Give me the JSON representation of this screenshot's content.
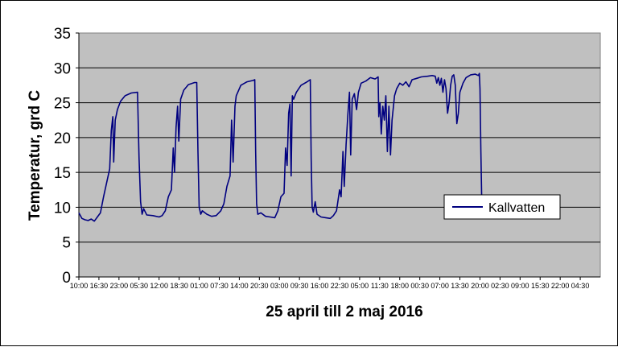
{
  "chart_data": {
    "type": "line",
    "title": "",
    "xlabel": "25 april till 2 maj 2016",
    "ylabel": "Temperatur, grd C",
    "ylim": [
      0,
      35
    ],
    "yticks": [
      0,
      5,
      10,
      15,
      20,
      25,
      30,
      35
    ],
    "grid": "horizontal",
    "legend_position": "right",
    "x_tick_labels": [
      "10:00",
      "16:30",
      "23:00",
      "05:30",
      "12:00",
      "18:30",
      "01:00",
      "07:30",
      "14:00",
      "20:30",
      "03:00",
      "09:30",
      "16:00",
      "22:30",
      "05:00",
      "11:30",
      "18:00",
      "00:30",
      "07:00",
      "13:30",
      "20:00",
      "02:30",
      "09:00",
      "15:30",
      "22:00",
      "04:30"
    ],
    "x_tick_spacing_hours": 6.5,
    "series": [
      {
        "name": "Kallvatten",
        "color": "#000080",
        "points": [
          [
            0,
            9.2
          ],
          [
            1,
            8.4
          ],
          [
            2,
            8.2
          ],
          [
            3,
            8.1
          ],
          [
            4,
            8.3
          ],
          [
            5,
            8.0
          ],
          [
            6,
            8.6
          ],
          [
            7,
            9.2
          ],
          [
            8,
            11.5
          ],
          [
            9,
            13.5
          ],
          [
            10,
            15.5
          ],
          [
            10.5,
            21.0
          ],
          [
            11,
            23.0
          ],
          [
            11.3,
            16.5
          ],
          [
            11.8,
            22.5
          ],
          [
            12.5,
            24.0
          ],
          [
            13.5,
            25.2
          ],
          [
            15,
            26.0
          ],
          [
            17,
            26.4
          ],
          [
            19,
            26.5
          ],
          [
            19.5,
            17.0
          ],
          [
            20,
            10.8
          ],
          [
            20.5,
            9.0
          ],
          [
            21,
            9.8
          ],
          [
            22,
            8.9
          ],
          [
            24,
            8.8
          ],
          [
            26,
            8.6
          ],
          [
            27,
            8.8
          ],
          [
            28,
            9.5
          ],
          [
            29,
            11.5
          ],
          [
            30,
            12.5
          ],
          [
            30.6,
            18.5
          ],
          [
            31,
            15.0
          ],
          [
            31.5,
            21.5
          ],
          [
            32,
            24.5
          ],
          [
            32.4,
            19.5
          ],
          [
            33,
            25.5
          ],
          [
            34,
            26.8
          ],
          [
            35.5,
            27.6
          ],
          [
            37.5,
            27.9
          ],
          [
            38.2,
            27.9
          ],
          [
            38.6,
            18.0
          ],
          [
            39,
            10.0
          ],
          [
            39.5,
            9.0
          ],
          [
            40,
            9.5
          ],
          [
            41.5,
            9.0
          ],
          [
            43,
            8.7
          ],
          [
            44.5,
            8.8
          ],
          [
            46,
            9.5
          ],
          [
            47,
            10.5
          ],
          [
            48,
            13.0
          ],
          [
            49,
            14.5
          ],
          [
            49.5,
            22.5
          ],
          [
            50,
            16.5
          ],
          [
            50.6,
            24.5
          ],
          [
            51,
            26.0
          ],
          [
            52.5,
            27.5
          ],
          [
            54.5,
            28.0
          ],
          [
            56.5,
            28.2
          ],
          [
            57,
            28.3
          ],
          [
            57.3,
            18.0
          ],
          [
            57.6,
            10.5
          ],
          [
            58,
            9.0
          ],
          [
            59,
            9.2
          ],
          [
            60.5,
            8.7
          ],
          [
            62,
            8.6
          ],
          [
            63.5,
            8.5
          ],
          [
            64.5,
            9.5
          ],
          [
            65.5,
            11.5
          ],
          [
            66.5,
            12.0
          ],
          [
            67,
            18.5
          ],
          [
            67.5,
            16.0
          ],
          [
            68,
            23.5
          ],
          [
            68.4,
            24.8
          ],
          [
            68.8,
            14.5
          ],
          [
            69.2,
            26.0
          ],
          [
            69.6,
            25.5
          ],
          [
            70.5,
            26.5
          ],
          [
            72,
            27.5
          ],
          [
            74,
            28.0
          ],
          [
            75,
            28.3
          ],
          [
            75.3,
            17.0
          ],
          [
            75.6,
            10.0
          ],
          [
            76,
            9.3
          ],
          [
            76.6,
            10.8
          ],
          [
            77.2,
            9.0
          ],
          [
            78.5,
            8.6
          ],
          [
            80,
            8.5
          ],
          [
            81.5,
            8.4
          ],
          [
            82.5,
            8.8
          ],
          [
            83.5,
            9.5
          ],
          [
            84.5,
            12.5
          ],
          [
            85,
            11.5
          ],
          [
            85.6,
            18.0
          ],
          [
            86,
            13.0
          ],
          [
            86.6,
            19.0
          ],
          [
            87.2,
            23.5
          ],
          [
            87.7,
            26.5
          ],
          [
            88.1,
            17.5
          ],
          [
            88.6,
            25.5
          ],
          [
            89.3,
            26.3
          ],
          [
            90,
            24.0
          ],
          [
            90.6,
            26.5
          ],
          [
            91.5,
            27.8
          ],
          [
            93,
            28.1
          ],
          [
            94.5,
            28.6
          ],
          [
            96,
            28.4
          ],
          [
            97,
            28.7
          ],
          [
            97.2,
            23.0
          ],
          [
            97.6,
            25.0
          ],
          [
            98,
            20.5
          ],
          [
            98.5,
            24.5
          ],
          [
            99,
            22.5
          ],
          [
            99.5,
            26.0
          ],
          [
            100,
            18.0
          ],
          [
            100.5,
            24.5
          ],
          [
            101,
            17.5
          ],
          [
            101.5,
            22.5
          ],
          [
            102.3,
            26.0
          ],
          [
            103,
            27.0
          ],
          [
            104,
            27.8
          ],
          [
            105,
            27.5
          ],
          [
            106,
            28.0
          ],
          [
            107,
            27.3
          ],
          [
            108,
            28.3
          ],
          [
            109.5,
            28.5
          ],
          [
            111,
            28.7
          ],
          [
            113,
            28.8
          ],
          [
            114.5,
            28.9
          ],
          [
            115.5,
            28.8
          ],
          [
            116,
            27.8
          ],
          [
            116.5,
            28.6
          ],
          [
            117,
            27.5
          ],
          [
            117.5,
            28.5
          ],
          [
            118,
            26.5
          ],
          [
            118.5,
            28.3
          ],
          [
            119,
            27.0
          ],
          [
            119.5,
            23.5
          ],
          [
            120,
            25.0
          ],
          [
            120.5,
            27.5
          ],
          [
            121,
            28.8
          ],
          [
            121.5,
            29.0
          ],
          [
            122,
            27.5
          ],
          [
            122.5,
            22.0
          ],
          [
            123,
            23.5
          ],
          [
            123.5,
            26.5
          ],
          [
            124.5,
            27.8
          ],
          [
            125.5,
            28.6
          ],
          [
            127,
            29.0
          ],
          [
            128.5,
            29.1
          ],
          [
            129.5,
            28.9
          ],
          [
            129.8,
            29.2
          ],
          [
            130,
            27.0
          ],
          [
            130.3,
            18.0
          ],
          [
            130.6,
            10.0
          ],
          [
            131,
            11.0
          ],
          [
            131.5,
            9.5
          ],
          [
            132,
            10.3
          ],
          [
            132.5,
            9.2
          ],
          [
            133,
            9.5
          ]
        ]
      }
    ]
  }
}
